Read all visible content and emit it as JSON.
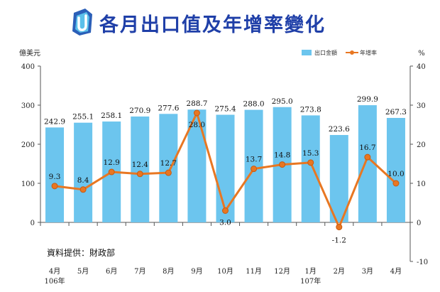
{
  "chart_data": {
    "type": "bar",
    "title": "各月出口值及年增率變化",
    "categories": [
      "4月",
      "5月",
      "6月",
      "7月",
      "8月",
      "9月",
      "10月",
      "11月",
      "12月",
      "1月",
      "2月",
      "3月",
      "4月"
    ],
    "year_labels": [
      "106年",
      "",
      "",
      "",
      "",
      "",
      "",
      "",
      "",
      "107年",
      "",
      "",
      ""
    ],
    "series": [
      {
        "name": "出口金額",
        "type": "bar",
        "axis": "left",
        "color": "#6cc5ee",
        "values": [
          242.9,
          255.1,
          258.1,
          270.9,
          277.6,
          288.7,
          275.4,
          288.0,
          295.0,
          273.8,
          223.6,
          299.9,
          267.3
        ],
        "labels": [
          "242.9",
          "255.1",
          "258.1",
          "270.9",
          "277.6",
          "288.7",
          "275.4",
          "288.0",
          "295.0",
          "273.8",
          "223.6",
          "299.9",
          "267.3"
        ]
      },
      {
        "name": "年增率",
        "type": "line",
        "axis": "right",
        "color": "#e87722",
        "values": [
          9.3,
          8.4,
          12.9,
          12.4,
          12.7,
          28.0,
          3.0,
          13.7,
          14.8,
          15.3,
          -1.2,
          16.7,
          10.0
        ],
        "labels": [
          "9.3",
          "8.4",
          "12.9",
          "12.4",
          "12.7",
          "28.0",
          "3.0",
          "13.7",
          "14.8",
          "15.3",
          "-1.2",
          "16.7",
          "10.0"
        ]
      }
    ],
    "ylabel_left": "億美元",
    "ylabel_right": "%",
    "ylim_left": [
      0,
      400
    ],
    "yticks_left": [
      "0",
      "100",
      "200",
      "300",
      "400"
    ],
    "ylim_right": [
      -10,
      40
    ],
    "yticks_right": [
      "-10",
      "0",
      "10",
      "20",
      "30",
      "40"
    ],
    "legend_position": "top-right",
    "grid": false,
    "source_note": "資料提供：財政部"
  },
  "logo_icon": "u-logo-icon"
}
